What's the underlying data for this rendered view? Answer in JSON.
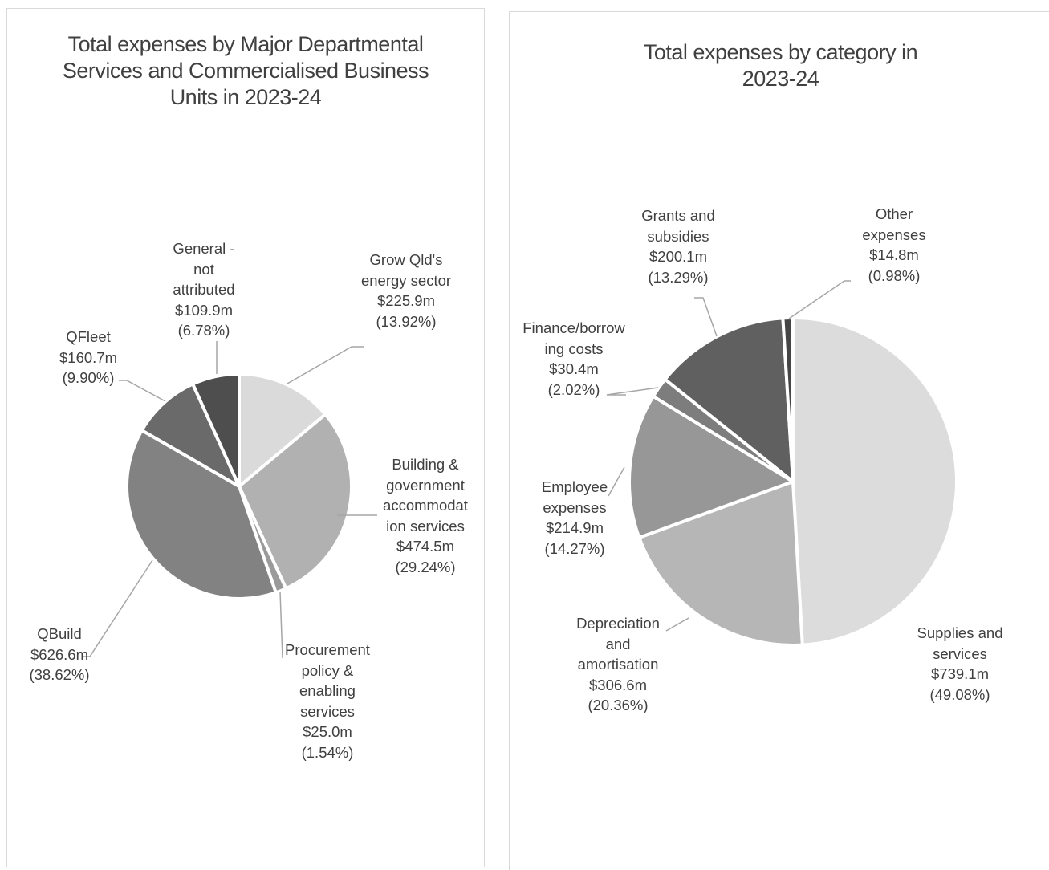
{
  "chart_data": [
    {
      "type": "pie",
      "title": "Total expenses by Major Departmental Services and Commercialised Business Units in 2023-24",
      "slices": [
        {
          "label": [
            "Grow Qld's",
            "energy sector"
          ],
          "value_text": "$225.9m",
          "pct_text": "(13.92%)",
          "value": 225.9,
          "percent": 13.92,
          "color": "#dadada"
        },
        {
          "label": [
            "Building &",
            "government",
            "accommodat",
            "ion services"
          ],
          "value_text": "$474.5m",
          "pct_text": "(29.24%)",
          "value": 474.5,
          "percent": 29.24,
          "color": "#b1b1b1"
        },
        {
          "label": [
            "Procurement",
            "policy &",
            "enabling",
            "services"
          ],
          "value_text": "$25.0m",
          "pct_text": "(1.54%)",
          "value": 25.0,
          "percent": 1.54,
          "color": "#9a9a9a"
        },
        {
          "label": [
            "QBuild"
          ],
          "value_text": "$626.6m",
          "pct_text": "(38.62%)",
          "value": 626.6,
          "percent": 38.62,
          "color": "#828282"
        },
        {
          "label": [
            "QFleet"
          ],
          "value_text": "$160.7m",
          "pct_text": "(9.90%)",
          "value": 160.7,
          "percent": 9.9,
          "color": "#6a6a6a"
        },
        {
          "label": [
            "General -",
            "not",
            "attributed"
          ],
          "value_text": "$109.9m",
          "pct_text": "(6.78%)",
          "value": 109.9,
          "percent": 6.78,
          "color": "#4e4e4e"
        }
      ]
    },
    {
      "type": "pie",
      "title": "Total expenses by category in 2023-24",
      "slices": [
        {
          "label": [
            "Supplies and",
            "services"
          ],
          "value_text": "$739.1m",
          "pct_text": "(49.08%)",
          "value": 739.1,
          "percent": 49.08,
          "color": "#dcdcdc"
        },
        {
          "label": [
            "Depreciation",
            "and",
            "amortisation"
          ],
          "value_text": "$306.6m",
          "pct_text": "(20.36%)",
          "value": 306.6,
          "percent": 20.36,
          "color": "#b6b6b6"
        },
        {
          "label": [
            "Employee",
            "expenses"
          ],
          "value_text": "$214.9m",
          "pct_text": "(14.27%)",
          "value": 214.9,
          "percent": 14.27,
          "color": "#979797"
        },
        {
          "label": [
            "Finance/borrow",
            "ing costs"
          ],
          "value_text": "$30.4m",
          "pct_text": "(2.02%)",
          "value": 30.4,
          "percent": 2.02,
          "color": "#7d7d7d"
        },
        {
          "label": [
            "Grants and",
            "subsidies"
          ],
          "value_text": "$200.1m",
          "pct_text": "(13.29%)",
          "value": 200.1,
          "percent": 13.29,
          "color": "#606060"
        },
        {
          "label": [
            "Other",
            "expenses"
          ],
          "value_text": "$14.8m",
          "pct_text": "(0.98%)",
          "value": 14.8,
          "percent": 0.98,
          "color": "#454545"
        }
      ]
    }
  ]
}
